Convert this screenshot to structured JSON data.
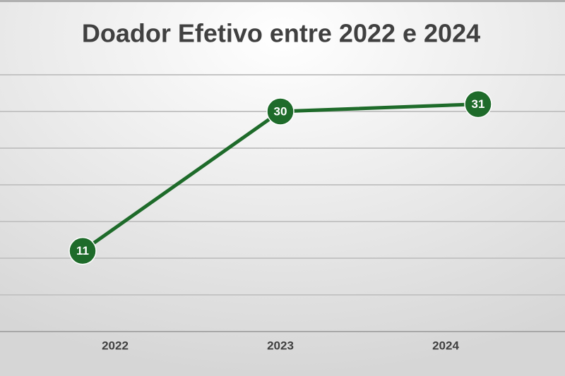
{
  "chart_data": {
    "type": "line",
    "title": "Doador Efetivo entre 2022 e 2024",
    "categories": [
      "2022",
      "2023",
      "2024"
    ],
    "values": [
      11,
      30,
      31
    ],
    "color": "#1e6b2a",
    "ylim": [
      0,
      35
    ],
    "yticks": [
      0,
      5,
      10,
      15,
      20,
      25,
      30,
      35
    ],
    "grid": true
  }
}
